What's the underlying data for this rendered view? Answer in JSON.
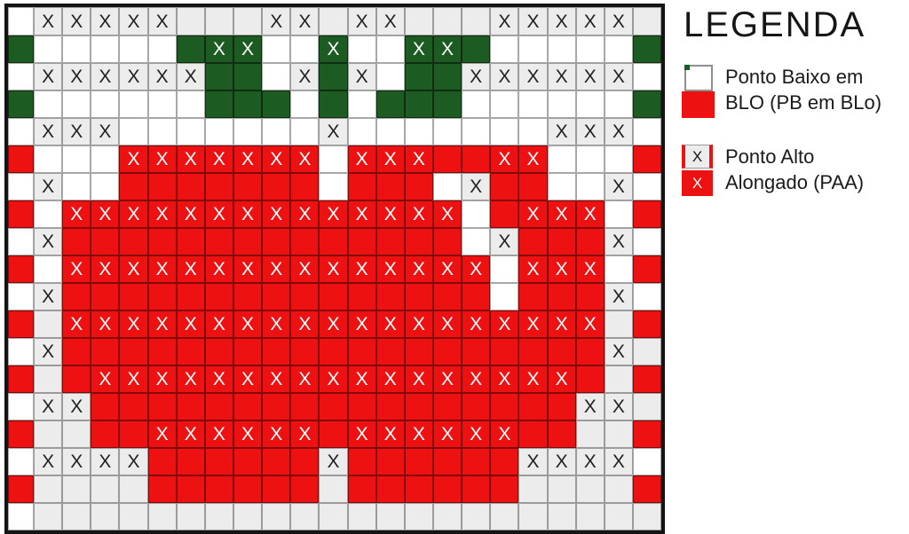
{
  "legend": {
    "title": "LEGENDA",
    "items": [
      {
        "line1": "Ponto Baixo em",
        "line2": "BLO (PB em BLo)"
      },
      {
        "line1": "Ponto Alto",
        "line2": "Alongado (PAA)"
      }
    ]
  },
  "colors": {
    "red": "#ee1111",
    "green": "#1c5b22",
    "gray": "#ececec",
    "white": "#ffffff",
    "x_dark": "#1f1f1f",
    "x_light": "#ffffff",
    "grid_border": "#141414"
  },
  "grid": {
    "columns": 23,
    "rows": 19,
    "x_symbol": "X",
    "cell_codes": {
      ".": "white empty",
      "g": "gray empty",
      "G": "gray with black X (Ponto Alto Alongado top)",
      "e": "green empty",
      "E": "green with white X",
      "r": "red empty (Ponto Baixo em BLO)",
      "R": "red with white X (Ponto Alto Alongado bottom)"
    },
    "rows_data": [
      ".GGGGGgggGGgGGgggGGGGGg",
      "e.....eEE..E..EEe.....e",
      ".GGGGGGee.GeG.eeGGGGGG.",
      "e......eee.e.eee......e",
      ".GGG.......G.......GGG.",
      "r...RRRRRRR.RRRrrRR...r",
      ".G..rrrrrrr.rrr.Grr..G.",
      "r.RRRRRRRRRRRRRR.rRRR.r",
      ".Grrrrrrrrrrrrrr.GrrrG.",
      "r.RRRRRRRRRRRRRRR.RRR.r",
      ".Grrrrrrrrrrrrrrr.rrrG.",
      "rgRRRRRRRRRRRRRRRRRRRgr",
      ".GrrrrrrrrrrrrrrrrrrrGg",
      "rgrRRRRRRRRRRRRRRRRRrgr",
      ".GGrrrrrrrrrrrrrrrrrGGg",
      "rggrrRRRRRRrRRRRRRrrggr",
      ".GGGGrrrrrrGrrrrrrGGGG.",
      "rggggrrrrrrgrrrrrrggggr",
      ".gggggggggggggggggggggg"
    ]
  }
}
